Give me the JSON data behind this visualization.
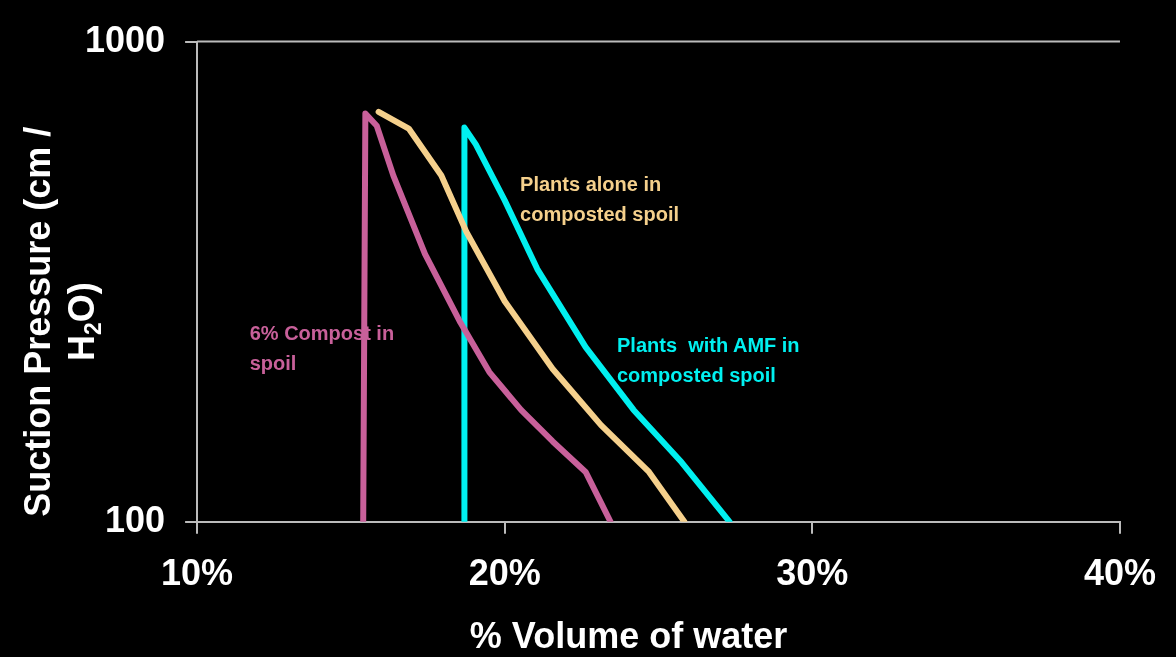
{
  "chart_data": {
    "type": "line",
    "xlabel": "% Volume of water",
    "ylabel": "Suction Pressure (cm / H$_{2}$O)",
    "xlim": [
      10,
      40
    ],
    "xticks": [
      {
        "value": 10,
        "label": "10%"
      },
      {
        "value": 20,
        "label": "20%"
      },
      {
        "value": 30,
        "label": "30%"
      },
      {
        "value": 40,
        "label": "40%"
      }
    ],
    "ylim": [
      100,
      1000
    ],
    "yticks": [
      100,
      1000
    ],
    "log": "y",
    "grid": false,
    "legend": false,
    "marker": "none",
    "line_style": "solid",
    "series": [
      {
        "name": "6% Compost in spoil",
        "color": "#c8609a",
        "x": [
          15.4,
          15.47,
          15.84,
          16.38,
          17.41,
          18.56,
          19.5,
          20.53,
          21.56,
          22.63,
          23.44
        ],
        "values": [
          100,
          708,
          668,
          526,
          361,
          260,
          205,
          171,
          147,
          127,
          100
        ]
      },
      {
        "name": "Plants alone in composted spoil",
        "color": "#f5d08c",
        "x": [
          15.9,
          16.88,
          17.94,
          18.75,
          20.0,
          21.56,
          23.13,
          24.69,
          25.84
        ],
        "values": [
          714,
          659,
          526,
          402,
          288,
          208,
          159,
          127,
          100
        ]
      },
      {
        "name": "Plants  with AMF in composted spoil",
        "color": "#00f0f0",
        "x": [
          18.69,
          18.69,
          19.06,
          20.0,
          21.06,
          22.63,
          24.19,
          25.75,
          27.31
        ],
        "values": [
          100,
          662,
          611,
          467,
          336,
          231,
          171,
          133,
          100
        ]
      }
    ]
  }
}
